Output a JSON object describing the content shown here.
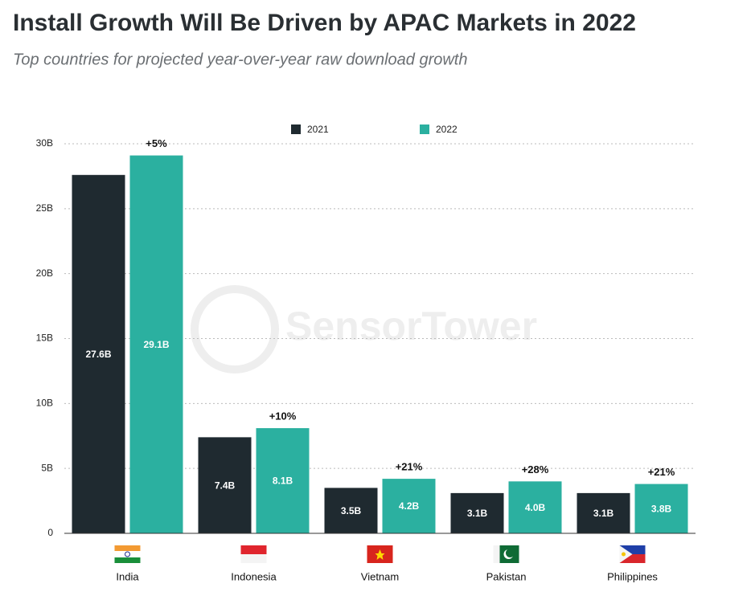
{
  "chart_data": {
    "type": "bar",
    "title": "Install Growth Will Be Driven by APAC Markets in 2022",
    "subtitle": "Top countries for projected year-over-year raw download growth",
    "watermark": "SensorTower",
    "categories": [
      "India",
      "Indonesia",
      "Vietnam",
      "Pakistan",
      "Philippines"
    ],
    "series": [
      {
        "name": "2021",
        "color": "#1f2a30",
        "values": [
          27.6,
          7.4,
          3.5,
          3.1,
          3.1
        ],
        "value_labels": [
          "27.6B",
          "7.4B",
          "3.5B",
          "3.1B",
          "3.1B"
        ]
      },
      {
        "name": "2022",
        "color": "#2bb0a0",
        "values": [
          29.1,
          8.1,
          4.2,
          4.0,
          3.8
        ],
        "value_labels": [
          "29.1B",
          "8.1B",
          "4.2B",
          "4.0B",
          "3.8B"
        ]
      }
    ],
    "growth_labels": [
      "+5%",
      "+10%",
      "+21%",
      "+28%",
      "+21%"
    ],
    "ylim": [
      0,
      30
    ],
    "yticks": [
      {
        "value": 0,
        "label": "0"
      },
      {
        "value": 5,
        "label": "5B"
      },
      {
        "value": 10,
        "label": "10B"
      },
      {
        "value": 15,
        "label": "15B"
      },
      {
        "value": 20,
        "label": "20B"
      },
      {
        "value": 25,
        "label": "25B"
      },
      {
        "value": 30,
        "label": "30B"
      }
    ],
    "grid": true
  }
}
